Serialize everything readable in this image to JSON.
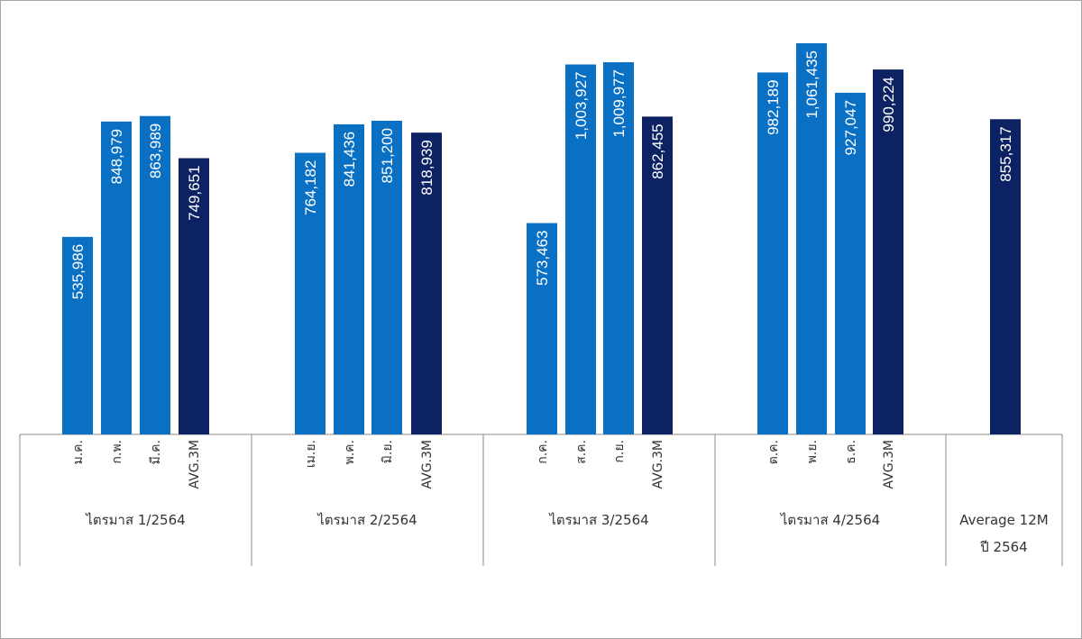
{
  "colors": {
    "month_bar": "#0a70c4",
    "avg_bar": "#0c2262",
    "axis": "#8c8c8c"
  },
  "chart_data": {
    "type": "bar",
    "ylim": [
      0,
      1100000
    ],
    "groups": [
      {
        "label": "ไตรมาส 1/2564",
        "bars": [
          {
            "category": "ม.ค.",
            "value": 535986,
            "label": "535,986",
            "kind": "month"
          },
          {
            "category": "ก.พ.",
            "value": 848979,
            "label": "848,979",
            "kind": "month"
          },
          {
            "category": "มี.ค.",
            "value": 863989,
            "label": "863,989",
            "kind": "month"
          },
          {
            "category": "AVG.3M",
            "value": 749651,
            "label": "749,651",
            "kind": "avg"
          }
        ]
      },
      {
        "label": "ไตรมาส 2/2564",
        "bars": [
          {
            "category": "เม.ย.",
            "value": 764182,
            "label": "764,182",
            "kind": "month"
          },
          {
            "category": "พ.ค.",
            "value": 841436,
            "label": "841,436",
            "kind": "month"
          },
          {
            "category": "มิ.ย.",
            "value": 851200,
            "label": "851,200",
            "kind": "month"
          },
          {
            "category": "AVG.3M",
            "value": 818939,
            "label": "818,939",
            "kind": "avg"
          }
        ]
      },
      {
        "label": "ไตรมาส 3/2564",
        "bars": [
          {
            "category": "ก.ค.",
            "value": 573463,
            "label": "573,463",
            "kind": "month"
          },
          {
            "category": "ส.ค.",
            "value": 1003927,
            "label": "1,003,927",
            "kind": "month"
          },
          {
            "category": "ก.ย.",
            "value": 1009977,
            "label": "1,009,977",
            "kind": "month"
          },
          {
            "category": "AVG.3M",
            "value": 862455,
            "label": "862,455",
            "kind": "avg"
          }
        ]
      },
      {
        "label": "ไตรมาส 4/2564",
        "bars": [
          {
            "category": "ต.ค.",
            "value": 982189,
            "label": "982,189",
            "kind": "month"
          },
          {
            "category": "พ.ย.",
            "value": 1061435,
            "label": "1,061,435",
            "kind": "month"
          },
          {
            "category": "ธ.ค.",
            "value": 927047,
            "label": "927,047",
            "kind": "month"
          },
          {
            "category": "AVG.3M",
            "value": 990224,
            "label": "990,224",
            "kind": "avg"
          }
        ]
      },
      {
        "label": "Average 12M",
        "sublabel": "ปี 2564",
        "bars": [
          {
            "category": "",
            "value": 855317,
            "label": "855,317",
            "kind": "avg"
          }
        ]
      }
    ]
  }
}
